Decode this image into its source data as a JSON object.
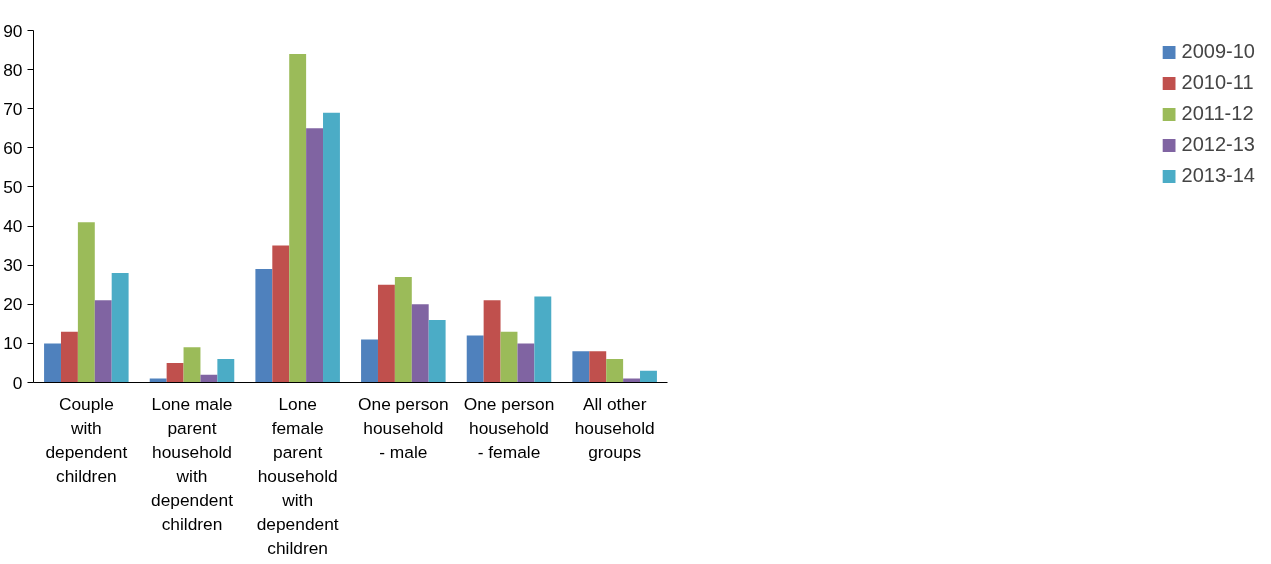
{
  "chart_data": {
    "type": "bar",
    "categories": [
      "Couple with dependent children",
      "Lone male parent household with dependent children",
      "Lone female parent household with dependent children",
      "One person household - male",
      "One person household - female",
      "All other household groups"
    ],
    "series": [
      {
        "name": "2009-10",
        "color": "#4f81bd",
        "values": [
          10,
          1,
          29,
          11,
          12,
          8
        ]
      },
      {
        "name": "2010-11",
        "color": "#c0504d",
        "values": [
          13,
          5,
          35,
          25,
          21,
          8
        ]
      },
      {
        "name": "2011-12",
        "color": "#9bbb59",
        "values": [
          41,
          9,
          84,
          27,
          13,
          6
        ]
      },
      {
        "name": "2012-13",
        "color": "#8064a2",
        "values": [
          21,
          2,
          65,
          20,
          10,
          1
        ]
      },
      {
        "name": "2013-14",
        "color": "#4bacc6",
        "values": [
          28,
          6,
          69,
          16,
          22,
          3
        ]
      }
    ],
    "ylim": [
      0,
      90
    ],
    "yticks": [
      0,
      10,
      20,
      30,
      40,
      50,
      60,
      70,
      80,
      90
    ],
    "grid": false,
    "legend": "right"
  }
}
